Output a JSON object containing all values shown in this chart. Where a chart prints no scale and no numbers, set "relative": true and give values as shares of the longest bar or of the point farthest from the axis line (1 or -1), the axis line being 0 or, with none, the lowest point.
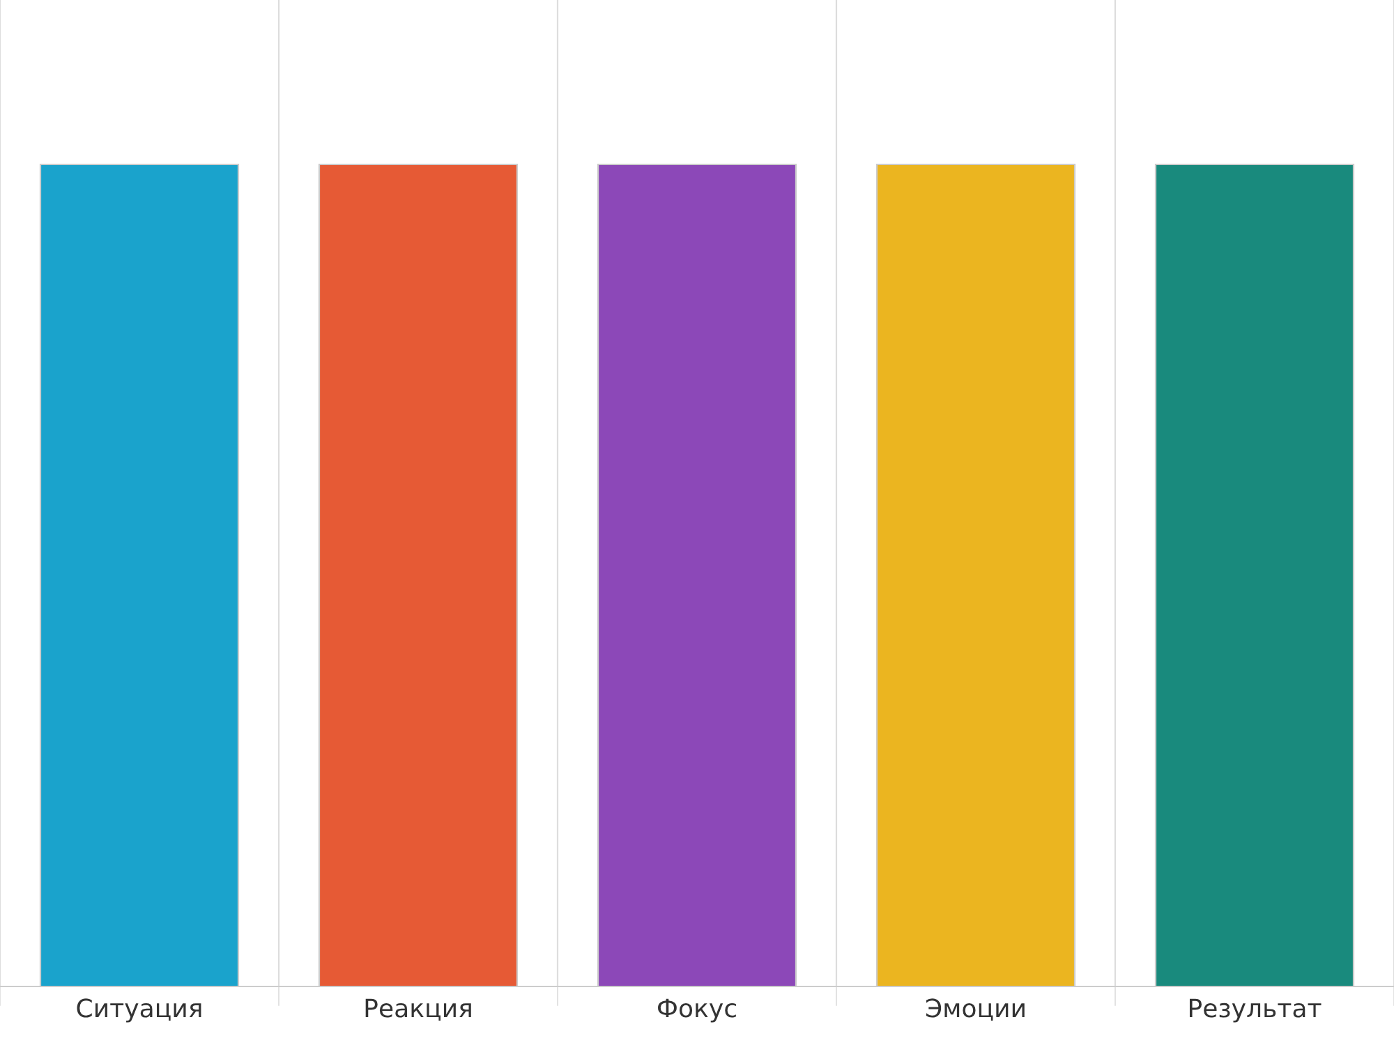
{
  "chart_data": {
    "type": "bar",
    "relative": true,
    "categories": [
      "Ситуация",
      "Реакция",
      "Фокус",
      "Эмоции",
      "Результат"
    ],
    "values": [
      1,
      1,
      1,
      1,
      1
    ],
    "colors": [
      "#1aa3cc",
      "#e65a35",
      "#8c48b8",
      "#ebb520",
      "#198a7d"
    ],
    "grid": "x"
  }
}
